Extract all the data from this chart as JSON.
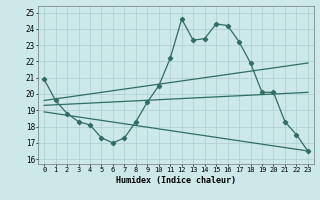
{
  "xlabel": "Humidex (Indice chaleur)",
  "x": [
    0,
    1,
    2,
    3,
    4,
    5,
    6,
    7,
    8,
    9,
    10,
    11,
    12,
    13,
    14,
    15,
    16,
    17,
    18,
    19,
    20,
    21,
    22,
    23
  ],
  "line1": [
    20.9,
    19.6,
    18.8,
    18.3,
    18.1,
    17.3,
    17.0,
    17.3,
    18.3,
    19.5,
    20.5,
    22.2,
    24.6,
    23.3,
    23.4,
    24.3,
    24.2,
    23.2,
    21.9,
    20.1,
    20.1,
    18.3,
    17.5,
    16.5
  ],
  "line2_x": [
    0,
    23
  ],
  "line2_y": [
    19.6,
    21.9
  ],
  "line3_x": [
    0,
    23
  ],
  "line3_y": [
    19.3,
    20.1
  ],
  "line4_x": [
    0,
    23
  ],
  "line4_y": [
    18.9,
    16.5
  ],
  "xlim": [
    -0.5,
    23.5
  ],
  "ylim": [
    15.7,
    25.4
  ],
  "yticks": [
    16,
    17,
    18,
    19,
    20,
    21,
    22,
    23,
    24,
    25
  ],
  "xticks": [
    0,
    1,
    2,
    3,
    4,
    5,
    6,
    7,
    8,
    9,
    10,
    11,
    12,
    13,
    14,
    15,
    16,
    17,
    18,
    19,
    20,
    21,
    22,
    23
  ],
  "line_color": "#2e6e63",
  "bg_color": "#cce8e8",
  "grid_color": "#aacfcf"
}
